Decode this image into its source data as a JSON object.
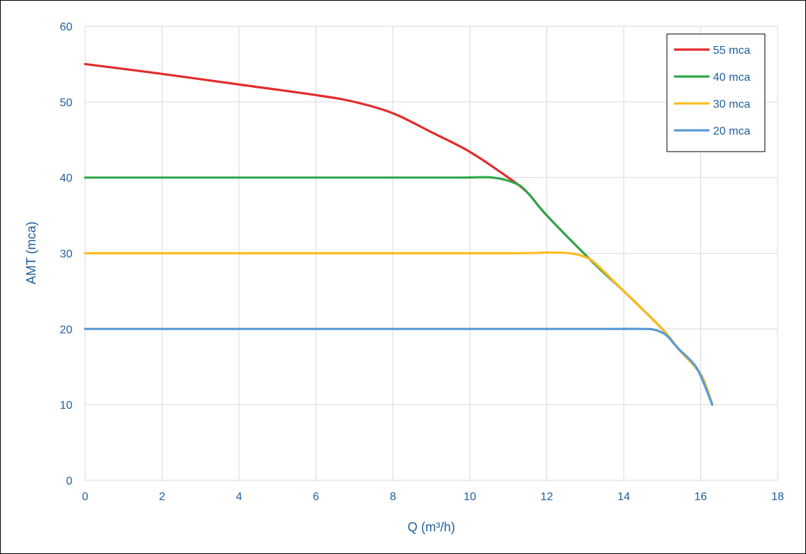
{
  "chart_data": {
    "type": "line",
    "title": "",
    "xlabel": "Q (m³/h)",
    "ylabel": "AMT (mca)",
    "xlim": [
      0,
      18
    ],
    "ylim": [
      0,
      60
    ],
    "x_ticks": [
      "0",
      "2",
      "4",
      "6",
      "8",
      "10",
      "12",
      "14",
      "16",
      "18"
    ],
    "y_ticks": [
      "0",
      "10",
      "20",
      "30",
      "40",
      "50",
      "60"
    ],
    "grid": true,
    "legend_position": "top-right",
    "series": [
      {
        "name": "55 mca",
        "color": "#e32b2b",
        "points": [
          [
            0,
            55
          ],
          [
            2,
            53.7
          ],
          [
            4,
            52.3
          ],
          [
            6,
            50.9
          ],
          [
            7,
            50.0
          ],
          [
            8,
            48.5
          ],
          [
            9,
            46.0
          ],
          [
            10,
            43.4
          ],
          [
            11,
            40.0
          ],
          [
            11.5,
            38.0
          ],
          [
            12,
            35.0
          ],
          [
            13.2,
            28.8
          ],
          [
            14,
            25.0
          ],
          [
            15,
            20.0
          ],
          [
            15.4,
            17.5
          ],
          [
            16,
            14.0
          ],
          [
            16.3,
            10.0
          ]
        ]
      },
      {
        "name": "40 mca",
        "color": "#2ea84a",
        "points": [
          [
            0,
            40
          ],
          [
            4,
            40
          ],
          [
            8,
            40
          ],
          [
            9.8,
            40
          ],
          [
            10.6,
            40
          ],
          [
            11.2,
            39.2
          ],
          [
            11.5,
            38.0
          ],
          [
            12,
            35.0
          ],
          [
            13.2,
            28.8
          ],
          [
            14,
            25.0
          ],
          [
            15,
            20.0
          ],
          [
            15.4,
            17.5
          ],
          [
            16,
            14.0
          ],
          [
            16.3,
            10.0
          ]
        ]
      },
      {
        "name": "30 mca",
        "color": "#fbbd1f",
        "points": [
          [
            0,
            30
          ],
          [
            6,
            30
          ],
          [
            11,
            30
          ],
          [
            12,
            30.1
          ],
          [
            12.6,
            30.0
          ],
          [
            13.0,
            29.5
          ],
          [
            13.3,
            28.5
          ],
          [
            14,
            25.0
          ],
          [
            15,
            20.0
          ],
          [
            15.4,
            17.5
          ],
          [
            16,
            14.0
          ],
          [
            16.3,
            10.0
          ]
        ]
      },
      {
        "name": "20 mca",
        "color": "#5b9bd5",
        "points": [
          [
            0,
            20
          ],
          [
            6,
            20
          ],
          [
            13.5,
            20
          ],
          [
            14.5,
            20.0
          ],
          [
            14.8,
            19.9
          ],
          [
            15.1,
            19.2
          ],
          [
            15.4,
            17.5
          ],
          [
            15.8,
            15.5
          ],
          [
            16.0,
            13.8
          ],
          [
            16.3,
            10.0
          ]
        ]
      }
    ]
  }
}
